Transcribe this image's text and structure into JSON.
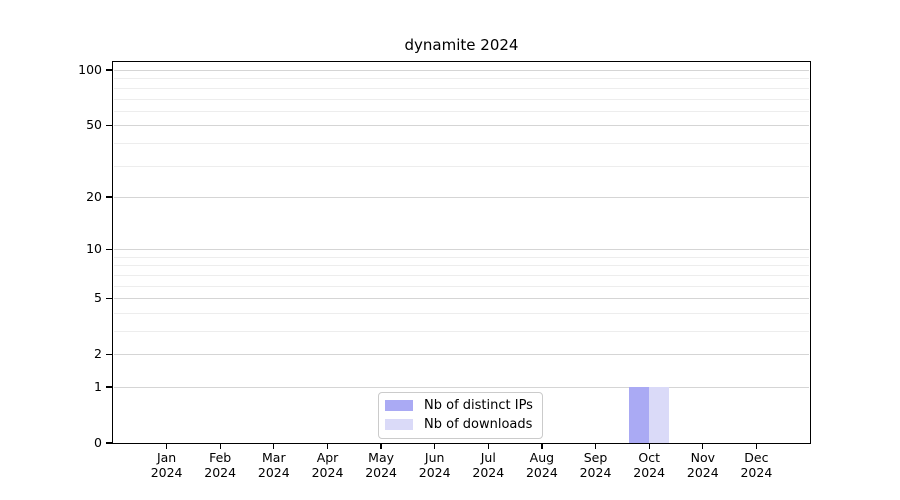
{
  "chart_data": {
    "type": "bar",
    "title": "dynamite 2024",
    "categories": [
      "Jan",
      "Feb",
      "Mar",
      "Apr",
      "May",
      "Jun",
      "Jul",
      "Aug",
      "Sep",
      "Oct",
      "Nov",
      "Dec"
    ],
    "x_year": "2024",
    "series": [
      {
        "name": "Nb of distinct IPs",
        "color": "#aaaaf4",
        "values": [
          0,
          0,
          0,
          0,
          0,
          0,
          0,
          0,
          0,
          1,
          0,
          0
        ]
      },
      {
        "name": "Nb of downloads",
        "color": "#dadaf8",
        "values": [
          0,
          0,
          0,
          0,
          0,
          0,
          0,
          0,
          0,
          1,
          0,
          0
        ]
      }
    ],
    "xlabel": "",
    "ylabel": "",
    "y_scale": "log1p",
    "y_major_ticks": [
      0,
      1,
      2,
      5,
      10,
      20,
      50,
      100
    ],
    "y_minor_ticks": [
      3,
      4,
      6,
      7,
      8,
      9,
      30,
      40,
      60,
      70,
      80,
      90
    ],
    "ylim": [
      0,
      110
    ],
    "grid": "horizontal",
    "legend_position": "lower-center-inside"
  },
  "colors": {
    "major_grid": "#d5d5d5",
    "minor_grid": "#ededed",
    "spine": "#000000",
    "background": "#ffffff"
  }
}
